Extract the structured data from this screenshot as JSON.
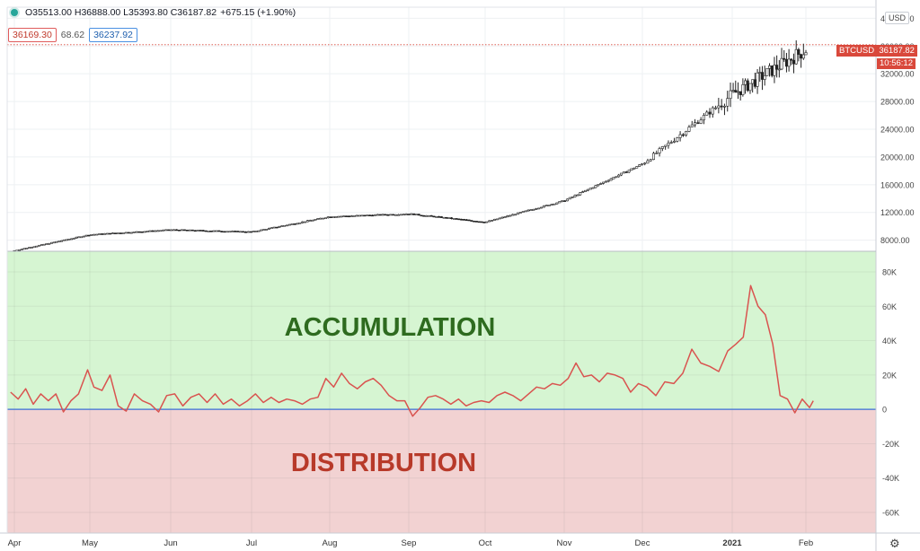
{
  "header": {
    "ohlc_text": "O35513.00 H36888.00 L35393.80 C36187.82",
    "change": "+675.15 (+1.90%)",
    "indicator_value_1": "36169.30",
    "indicator_value_2": "68.62",
    "indicator_value_3": "36237.92",
    "currency": "USD"
  },
  "price_tags": {
    "symbol": "BTCUSD",
    "last_price": "36187.82",
    "countdown": "10:56:12"
  },
  "colors": {
    "accumulation_bg": "#d6f5d2",
    "distribution_bg": "#f2d2d2",
    "accumulation_text": "#2e6b1f",
    "distribution_text": "#b83a2a",
    "indicator_line": "#d9534f",
    "zero_line": "#3a6fd8",
    "price_tag": "#d9483b"
  },
  "chart_data": [
    {
      "type": "candlestick",
      "symbol": "BTCUSD",
      "y_ticks": [
        "40000.00",
        "36000.00",
        "32000.00",
        "28000.00",
        "24000.00",
        "20000.00",
        "16000.00",
        "12000.00",
        "8000.00"
      ],
      "ylim": [
        6400,
        41600
      ],
      "x_ticks": [
        "Apr",
        "May",
        "Jun",
        "Jul",
        "Aug",
        "Sep",
        "Oct",
        "Nov",
        "Dec",
        "2021",
        "Feb"
      ],
      "last_close": 36187.82,
      "approx_closes_by_month": [
        {
          "month": "Apr",
          "x": 0.0,
          "close": 6500
        },
        {
          "month": "May",
          "x": 1.0,
          "close": 8800
        },
        {
          "month": "Jun",
          "x": 2.0,
          "close": 9500
        },
        {
          "month": "Jul",
          "x": 3.0,
          "close": 9200
        },
        {
          "month": "Aug",
          "x": 4.0,
          "close": 11400
        },
        {
          "month": "Sep",
          "x": 5.0,
          "close": 11800
        },
        {
          "month": "Oct",
          "x": 6.0,
          "close": 10600
        },
        {
          "month": "Nov",
          "x": 7.0,
          "close": 13700
        },
        {
          "month": "Dec",
          "x": 8.0,
          "close": 19000
        },
        {
          "month": "2021",
          "x": 9.0,
          "close": 29000
        },
        {
          "month": "Feb",
          "x": 10.0,
          "close": 35500
        }
      ]
    },
    {
      "type": "line",
      "zones": [
        "ACCUMULATION",
        "DISTRIBUTION"
      ],
      "y_ticks": [
        "80K",
        "60K",
        "40K",
        "20K",
        "0",
        "-20K",
        "-40K",
        "-60K"
      ],
      "ylim": [
        -72000,
        92000
      ],
      "x_ticks": [
        "Apr",
        "May",
        "Jun",
        "Jul",
        "Aug",
        "Sep",
        "Oct",
        "Nov",
        "Dec",
        "2021",
        "Feb"
      ],
      "points": [
        [
          -0.05,
          10000
        ],
        [
          0.05,
          6000
        ],
        [
          0.15,
          12000
        ],
        [
          0.25,
          3000
        ],
        [
          0.35,
          9000
        ],
        [
          0.45,
          5000
        ],
        [
          0.55,
          9000
        ],
        [
          0.65,
          -1500
        ],
        [
          0.75,
          5000
        ],
        [
          0.85,
          9000
        ],
        [
          0.97,
          23000
        ],
        [
          1.05,
          13000
        ],
        [
          1.15,
          11000
        ],
        [
          1.25,
          20000
        ],
        [
          1.35,
          2000
        ],
        [
          1.45,
          -1000
        ],
        [
          1.55,
          9000
        ],
        [
          1.65,
          5000
        ],
        [
          1.75,
          3000
        ],
        [
          1.85,
          -1500
        ],
        [
          1.95,
          8000
        ],
        [
          2.05,
          9000
        ],
        [
          2.15,
          2000
        ],
        [
          2.25,
          7000
        ],
        [
          2.35,
          9000
        ],
        [
          2.45,
          4000
        ],
        [
          2.55,
          9000
        ],
        [
          2.65,
          3000
        ],
        [
          2.75,
          6000
        ],
        [
          2.85,
          2000
        ],
        [
          2.95,
          5000
        ],
        [
          3.05,
          9000
        ],
        [
          3.15,
          4000
        ],
        [
          3.25,
          7000
        ],
        [
          3.35,
          4000
        ],
        [
          3.45,
          6000
        ],
        [
          3.55,
          5000
        ],
        [
          3.65,
          3000
        ],
        [
          3.75,
          6000
        ],
        [
          3.85,
          7000
        ],
        [
          3.95,
          18000
        ],
        [
          4.05,
          13000
        ],
        [
          4.15,
          21000
        ],
        [
          4.25,
          15000
        ],
        [
          4.35,
          12000
        ],
        [
          4.45,
          16000
        ],
        [
          4.55,
          18000
        ],
        [
          4.65,
          14000
        ],
        [
          4.75,
          8000
        ],
        [
          4.85,
          5000
        ],
        [
          4.95,
          5000
        ],
        [
          5.05,
          -4000
        ],
        [
          5.15,
          1000
        ],
        [
          5.25,
          7000
        ],
        [
          5.35,
          8000
        ],
        [
          5.45,
          6000
        ],
        [
          5.55,
          3000
        ],
        [
          5.65,
          6000
        ],
        [
          5.75,
          2000
        ],
        [
          5.85,
          4000
        ],
        [
          5.95,
          5000
        ],
        [
          6.05,
          4000
        ],
        [
          6.15,
          8000
        ],
        [
          6.25,
          10000
        ],
        [
          6.35,
          8000
        ],
        [
          6.45,
          5000
        ],
        [
          6.55,
          9000
        ],
        [
          6.65,
          13000
        ],
        [
          6.75,
          12000
        ],
        [
          6.85,
          15000
        ],
        [
          6.95,
          14000
        ],
        [
          7.05,
          18000
        ],
        [
          7.15,
          27000
        ],
        [
          7.25,
          19000
        ],
        [
          7.35,
          20000
        ],
        [
          7.45,
          16000
        ],
        [
          7.55,
          21000
        ],
        [
          7.65,
          20000
        ],
        [
          7.75,
          18000
        ],
        [
          7.85,
          10000
        ],
        [
          7.95,
          15000
        ],
        [
          8.05,
          13000
        ],
        [
          8.15,
          8000
        ],
        [
          8.25,
          16000
        ],
        [
          8.35,
          15000
        ],
        [
          8.45,
          21000
        ],
        [
          8.55,
          35000
        ],
        [
          8.65,
          27000
        ],
        [
          8.75,
          25000
        ],
        [
          8.85,
          22000
        ],
        [
          8.95,
          34000
        ],
        [
          9.05,
          38000
        ],
        [
          9.15,
          42000
        ],
        [
          9.25,
          72000
        ],
        [
          9.35,
          60000
        ],
        [
          9.45,
          55000
        ],
        [
          9.55,
          38000
        ],
        [
          9.65,
          8000
        ],
        [
          9.75,
          6000
        ],
        [
          9.85,
          -2000
        ],
        [
          9.95,
          6000
        ],
        [
          10.05,
          1000
        ],
        [
          10.1,
          5000
        ]
      ]
    }
  ]
}
